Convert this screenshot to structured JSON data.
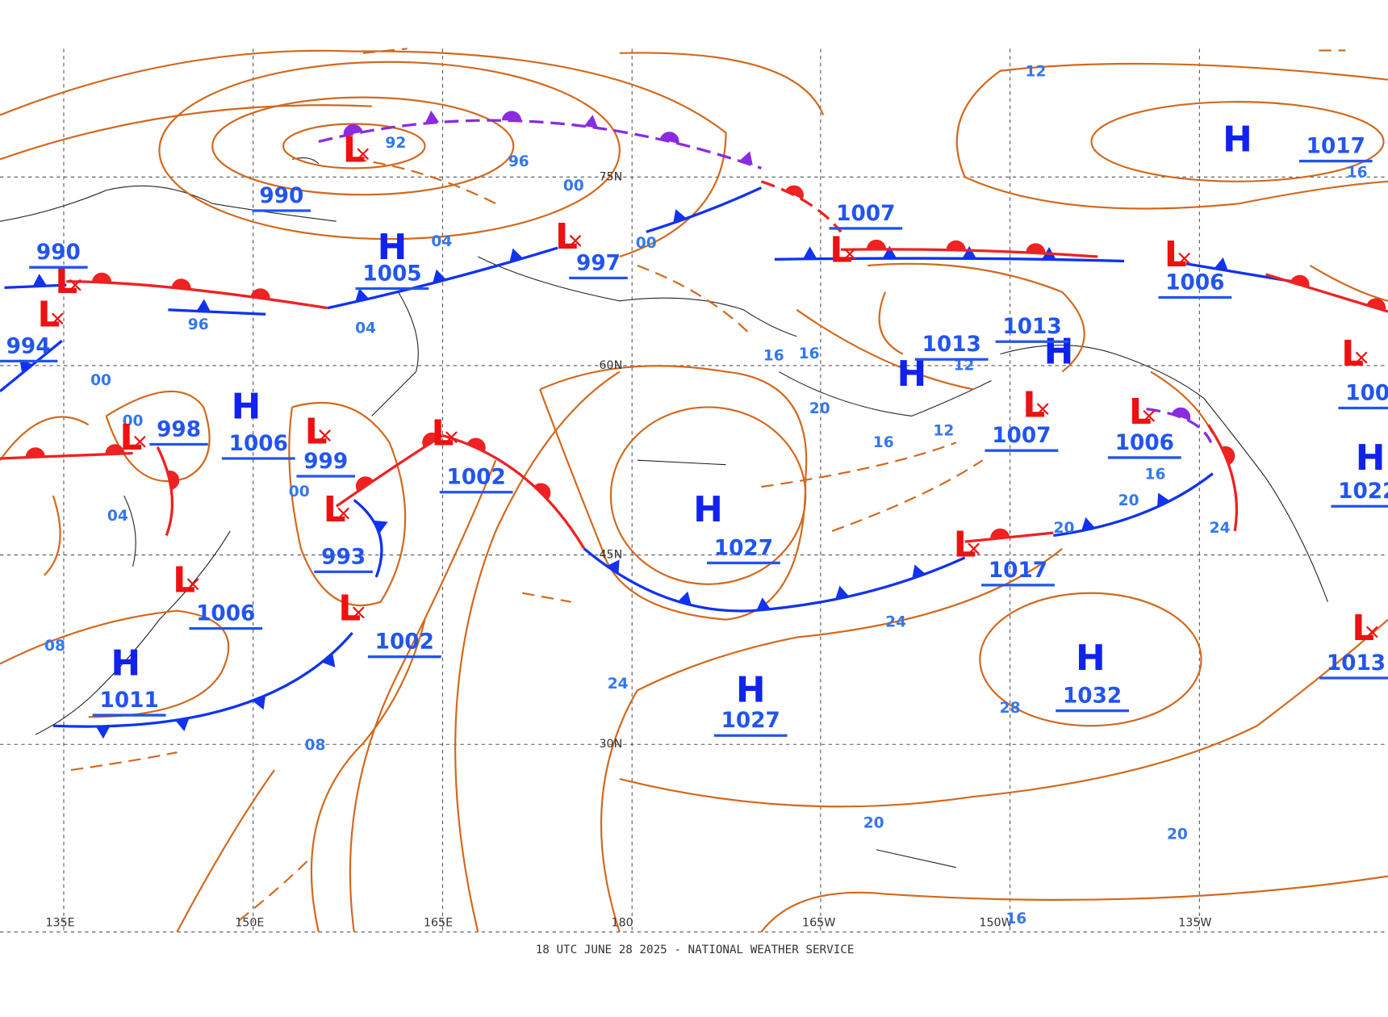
{
  "map": {
    "footer": "18 UTC JUNE 28 2025 - NATIONAL WEATHER SERVICE",
    "grid_labels": [
      "75N",
      "60N",
      "45N",
      "30N",
      "135E",
      "150E",
      "165E",
      "180",
      "165W",
      "150W",
      "135W"
    ],
    "centers": [
      "L",
      "L",
      "L",
      "L",
      "L",
      "L",
      "L",
      "L",
      "L",
      "L",
      "L",
      "L",
      "L",
      "L",
      "L",
      "L",
      "L",
      "H",
      "H",
      "H",
      "H",
      "H",
      "H",
      "H",
      "H",
      "H",
      "H"
    ],
    "pressures": [
      "990",
      "990",
      "994",
      "1005",
      "997",
      "1007",
      "1006",
      "1017",
      "1013",
      "1013",
      "998",
      "1006",
      "999",
      "1002",
      "1007",
      "1006",
      "100",
      "1022",
      "993",
      "1027",
      "1017",
      "1006",
      "1002",
      "1013",
      "1011",
      "1027",
      "1032"
    ],
    "isobar_labels": [
      "92",
      "96",
      "00",
      "04",
      "00",
      "96",
      "04",
      "00",
      "00",
      "04",
      "00",
      "16",
      "16",
      "12",
      "20",
      "16",
      "12",
      "16",
      "20",
      "20",
      "24",
      "24",
      "24",
      "08",
      "08",
      "28",
      "20",
      "20",
      "16",
      "12",
      "16"
    ]
  }
}
